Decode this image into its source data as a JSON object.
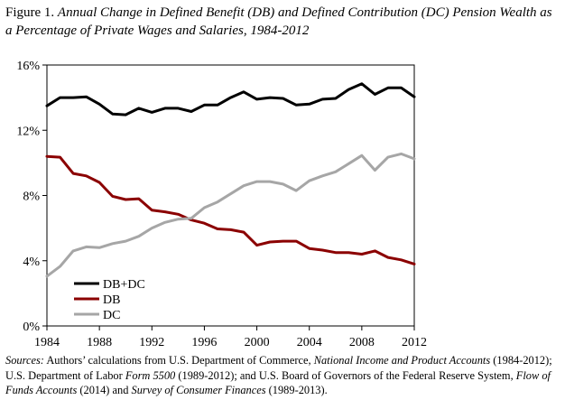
{
  "figure": {
    "title_lead": "Figure 1.",
    "title_rest": "Annual Change in Defined Benefit (DB) and Defined Contribution (DC) Pension Wealth as a Percentage of Private Wages and Salaries, 1984-2012"
  },
  "sources": {
    "label": "Sources:",
    "t1": "Authors’ calculations from U.S. Department of Commerce,",
    "i1": "National Income and Product Accounts",
    "t2": "(1984-2012); U.S. Department of Labor",
    "i2": "Form 5500",
    "t3": "(1989-2012); and U.S. Board of Governors of the Federal Reserve System,",
    "i3": "Flow of Funds Accounts",
    "t4": "(2014) and",
    "i4": "Survey of Consumer Finances",
    "t5": "(1989-2013)."
  },
  "chart_data": {
    "type": "line",
    "title": "Annual Change in Defined Benefit (DB) and Defined Contribution (DC) Pension Wealth as a Percentage of Private Wages and Salaries, 1984-2012",
    "xlabel": "",
    "ylabel": "",
    "x": [
      1984,
      1985,
      1986,
      1987,
      1988,
      1989,
      1990,
      1991,
      1992,
      1993,
      1994,
      1995,
      1996,
      1997,
      1998,
      1999,
      2000,
      2001,
      2002,
      2003,
      2004,
      2005,
      2006,
      2007,
      2008,
      2009,
      2010,
      2011,
      2012
    ],
    "xticks": [
      1984,
      1988,
      1992,
      1996,
      2000,
      2004,
      2008,
      2012
    ],
    "xtick_labels": [
      "1984",
      "1988",
      "1992",
      "1996",
      "2000",
      "2004",
      "2008",
      "2012"
    ],
    "yticks": [
      0,
      4,
      8,
      12,
      16
    ],
    "ytick_labels": [
      "0%",
      "4%",
      "8%",
      "12%",
      "16%"
    ],
    "xlim": [
      1984,
      2012
    ],
    "ylim": [
      0,
      16
    ],
    "grid": false,
    "legend_position": "bottom-left",
    "series": [
      {
        "name": "DB+DC",
        "color": "#000000",
        "values": [
          13.5,
          14.0,
          14.0,
          14.05,
          13.6,
          13.0,
          12.95,
          13.35,
          13.1,
          13.35,
          13.35,
          13.15,
          13.55,
          13.55,
          14.0,
          14.35,
          13.9,
          14.0,
          13.95,
          13.55,
          13.6,
          13.9,
          13.95,
          14.5,
          14.85,
          14.2,
          14.6,
          14.6,
          14.05
        ]
      },
      {
        "name": "DB",
        "color": "#8B0000",
        "values": [
          10.4,
          10.35,
          9.35,
          9.2,
          8.8,
          7.95,
          7.75,
          7.8,
          7.1,
          7.0,
          6.85,
          6.5,
          6.3,
          5.95,
          5.9,
          5.75,
          4.95,
          5.15,
          5.2,
          5.2,
          4.75,
          4.65,
          4.5,
          4.5,
          4.4,
          4.6,
          4.2,
          4.05,
          3.8
        ]
      },
      {
        "name": "DC",
        "color": "#A6A6A6",
        "values": [
          3.05,
          3.65,
          4.6,
          4.85,
          4.8,
          5.05,
          5.2,
          5.5,
          6.0,
          6.35,
          6.55,
          6.6,
          7.25,
          7.6,
          8.1,
          8.6,
          8.85,
          8.85,
          8.7,
          8.3,
          8.9,
          9.2,
          9.45,
          9.95,
          10.45,
          9.55,
          10.35,
          10.55,
          10.25
        ]
      }
    ]
  }
}
